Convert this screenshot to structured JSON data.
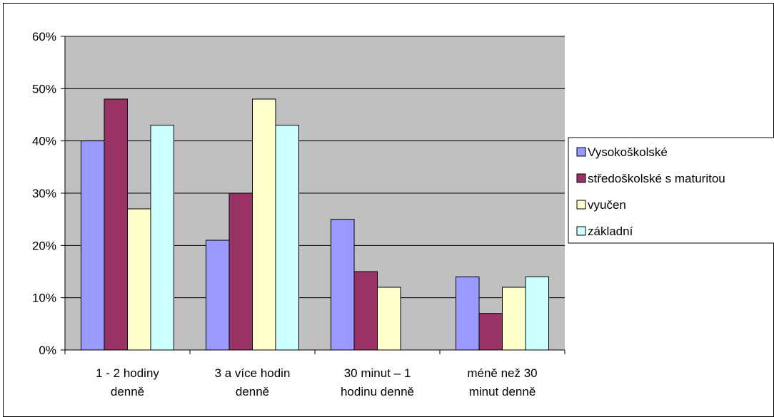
{
  "chart_data": {
    "type": "bar",
    "categories": [
      [
        "1 - 2 hodiny",
        "denně"
      ],
      [
        "3 a více hodin",
        "denně"
      ],
      [
        "30 minut – 1",
        "hodinu denně"
      ],
      [
        "méně než 30",
        "minut denně"
      ]
    ],
    "series": [
      {
        "name": "Vysokoškolské",
        "color": "#9999ff",
        "values": [
          40,
          21,
          25,
          14
        ]
      },
      {
        "name": "středoškolské s maturitou",
        "color": "#993366",
        "values": [
          48,
          30,
          15,
          7
        ]
      },
      {
        "name": "vyučen",
        "color": "#ffffcc",
        "values": [
          27,
          48,
          12,
          12
        ]
      },
      {
        "name": "základní",
        "color": "#ccffff",
        "values": [
          43,
          43,
          0,
          14
        ]
      }
    ],
    "ylim": [
      0,
      60
    ],
    "yticks": [
      0,
      10,
      20,
      30,
      40,
      50,
      60
    ],
    "ytick_labels": [
      "0%",
      "10%",
      "20%",
      "30%",
      "40%",
      "50%",
      "60%"
    ],
    "grid": true,
    "plot_background": "#c0c0c0",
    "legend_position": "right",
    "title": "",
    "xlabel": "",
    "ylabel": ""
  }
}
